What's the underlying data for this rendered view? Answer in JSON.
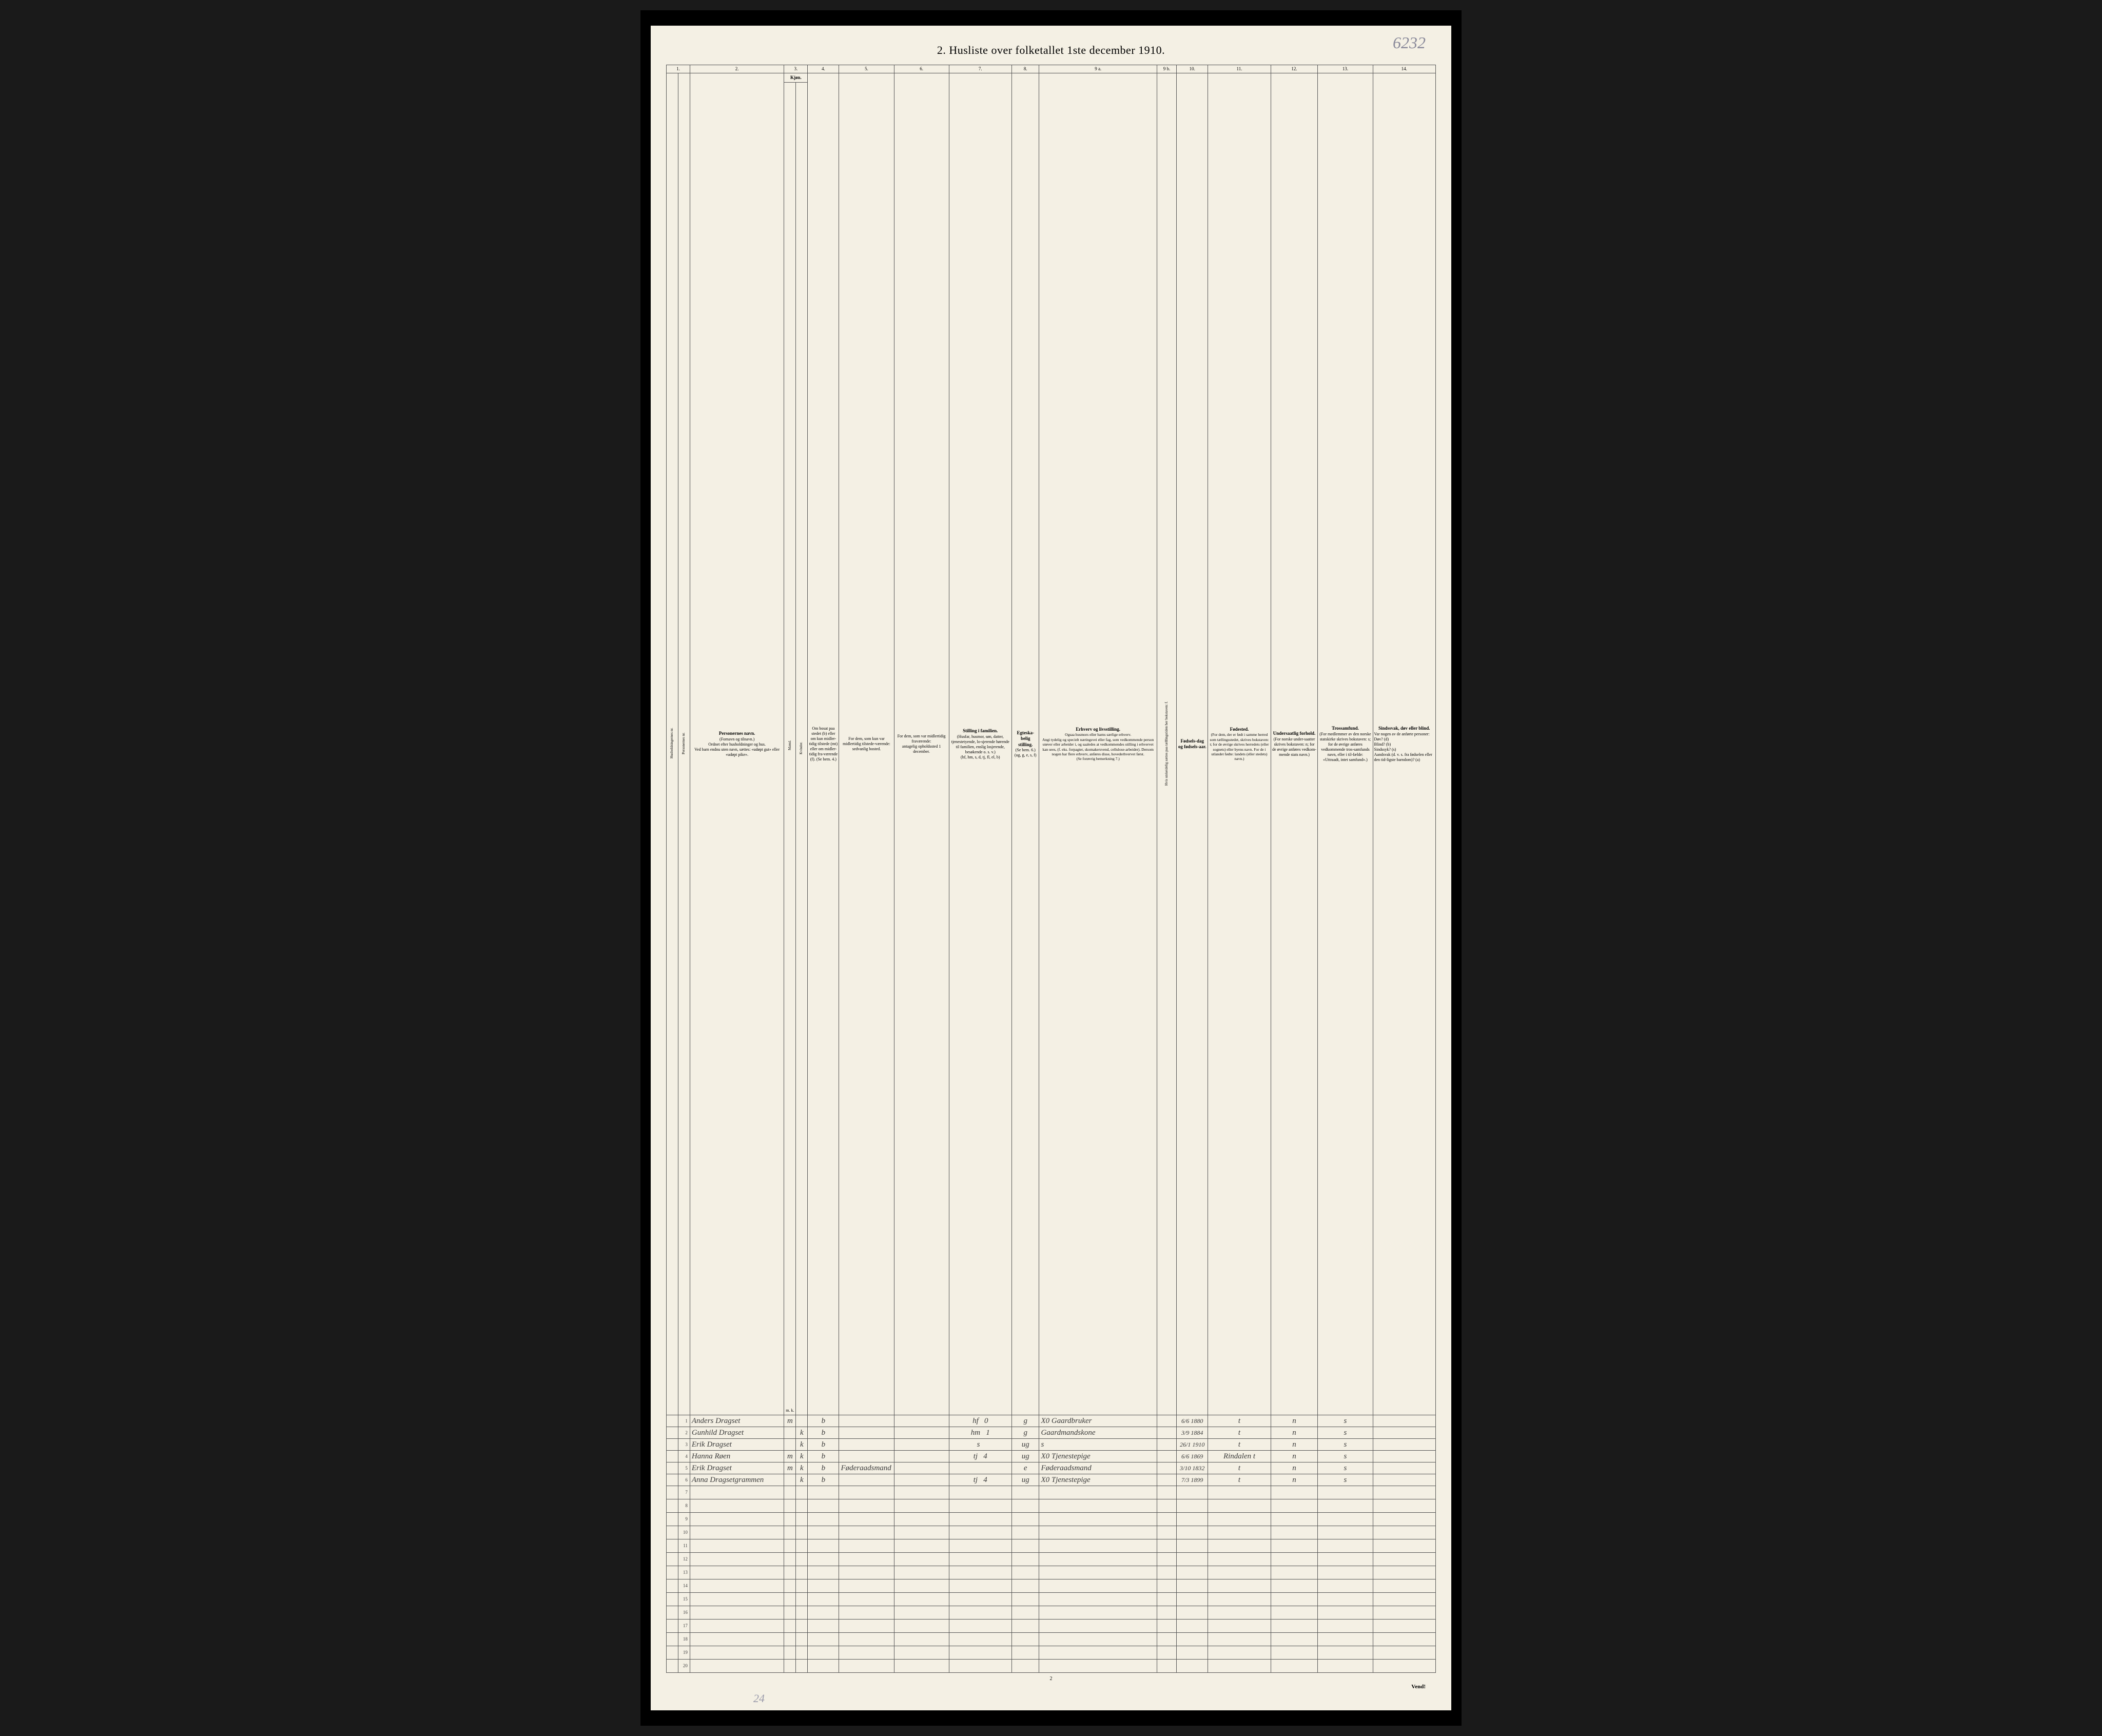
{
  "page_number_handwritten": "6232",
  "title": "2.  Husliste over folketallet 1ste december 1910.",
  "footer_page": "2",
  "footer_turn": "Vend!",
  "footer_left_handwritten": "24",
  "column_numbers": [
    "1.",
    "2.",
    "3.",
    "4.",
    "5.",
    "6.",
    "7.",
    "8.",
    "9 a.",
    "9 b.",
    "10.",
    "11.",
    "12.",
    "13.",
    "14."
  ],
  "headers": {
    "c1": "Husholdningernes nr.",
    "c2": "Personernes nr.",
    "c3_bold": "Personernes navn.",
    "c3": "(Fornavn og tilnavn.)\nOrdnet efter husholdninger og hus.\nVed barn endnu uten navn, sættes: «udøpt gut» eller «udøpt pike».",
    "c4_bold": "Kjøn.",
    "c4": "Mænd.",
    "c5": "Kvinder.",
    "c4b": "m.  k.",
    "c6": "Om bosat paa stedet (b) eller om kun midler-tidig tilstede (mt) eller om midler-tidig fra-værende (f). (Se bem. 4.)",
    "c7": "For dem, som kun var midlertidig tilstede-værende:\nsedvanlig bosted.",
    "c8": "For dem, som var midlertidig fraværende:\nantagelig opholdssted 1 december.",
    "c9_bold": "Stilling i familien.",
    "c9": "(Husfar, husmor, søn, datter, tjenestetyende, lo-sjerende hørende til familien, enslig losjerende, besøkende o. s. v.)\n(hf, hm, s, d, tj, fl, el, b)",
    "c10_bold": "Egteska-belig stilling.",
    "c10": "(Se bem. 6.)\n(ug, g, e, s, f)",
    "c11_bold": "Erhverv og livsstilling.",
    "c11": "Ogsaa husmors eller barns særlige erhverv.\nAngi tydelig og specielt næringsvei eller fag, som vedkommende person utøver eller arbeider i, og saaledes at vedkommendes stilling i erhvervet kan sees, (f. eks. forpagter, skomakersvend, cellulose-arbeider). Dersom nogen har flere erhverv, anføres disse, hovederhvervet først.\n(Se forøvrig bemerkning 7.)",
    "c12": "Hvis utskeidelig sættes paa tælllingstiden her bokstaven: f.",
    "c13_bold": "Fødsels-dag og fødsels-aar.",
    "c14_bold": "Fødested.",
    "c14": "(For dem, der er født i samme herred som tællingsstedet, skrives bokstaven: t; for de øvrige skrives herredets (eller sognets) eller byens navn. For de i utlandet fødte: landets (eller stedets) navn.)",
    "c15_bold": "Undersaatlig forhold.",
    "c15": "(For norske under-saatter skrives bokstaven: n; for de øvrige anføres vedkom-mende stats navn.)",
    "c16_bold": "Trossamfund.",
    "c16": "(For medlemmer av den norske statskirke skrives bokstaven: s; for de øvrige anføres vedkommende tros-samfunds navn, eller i til-fælde: «Uttraadt, intet samfund».)",
    "c17_bold": "Sindssvak, døv eller blind.",
    "c17": "Var nogen av de anførte personer:\nDøv?       (d)\nBlind?      (b)\nSindssyk?  (s)\nAandsvak (d. v. s. fra fødselen eller den tid-ligste barndom)?  (a)"
  },
  "rows": [
    {
      "n": "1",
      "name": "Anders Dragset",
      "m": "m",
      "k": "",
      "res": "b",
      "stilling": "hf",
      "fam": "0",
      "eg": "g",
      "erhverv": "X0 Gaardbruker",
      "dob": "6/6 1880",
      "fsted": "t",
      "und": "n",
      "tro": "s"
    },
    {
      "n": "2",
      "name": "Gunhild Dragset",
      "m": "",
      "k": "k",
      "res": "b",
      "stilling": "hm",
      "fam": "1",
      "eg": "g",
      "erhverv": "Gaardmandskone",
      "dob": "3/9 1884",
      "fsted": "t",
      "und": "n",
      "tro": "s"
    },
    {
      "n": "3",
      "name": "Erik Dragset",
      "m": "",
      "k": "k",
      "res": "b",
      "stilling": "s",
      "fam": "",
      "eg": "ug",
      "erhverv": "s",
      "dob": "26/1 1910",
      "fsted": "t",
      "und": "n",
      "tro": "s"
    },
    {
      "n": "4",
      "name": "Hanna Røen",
      "m": "m",
      "k": "k",
      "res": "b",
      "stilling": "tj",
      "fam": "4",
      "eg": "ug",
      "erhverv": "X0 Tjenestepige",
      "dob": "6/6 1869",
      "fsted": "Rindalen t",
      "und": "n",
      "tro": "s"
    },
    {
      "n": "5",
      "name": "Erik Dragset",
      "m": "m",
      "k": "k",
      "res": "b",
      "stilling": "",
      "c7": "Føderaadsmand",
      "fam": "",
      "eg": "e",
      "erhverv": "Føderaadsmand",
      "dob": "3/10 1832",
      "fsted": "t",
      "und": "n",
      "tro": "s"
    },
    {
      "n": "6",
      "name": "Anna Dragsetgrammen",
      "m": "",
      "k": "k",
      "res": "b",
      "stilling": "tj",
      "fam": "4",
      "eg": "ug",
      "erhverv": "X0 Tjenestepige",
      "dob": "7/3 1899",
      "fsted": "t",
      "und": "n",
      "tro": "s"
    }
  ],
  "empty_rows": [
    "7",
    "8",
    "9",
    "10",
    "11",
    "12",
    "13",
    "14",
    "15",
    "16",
    "17",
    "18",
    "19",
    "20"
  ]
}
